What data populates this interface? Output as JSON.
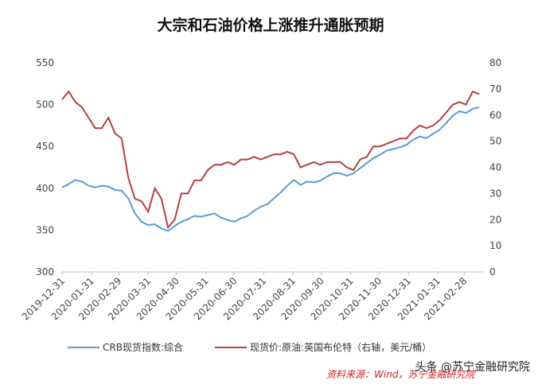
{
  "chart_data": {
    "type": "line",
    "title": "大宗和石油价格上涨推升通胀预期",
    "x": [
      "2019-12-31",
      "2020-01-07",
      "2020-01-14",
      "2020-01-21",
      "2020-01-28",
      "2020-02-04",
      "2020-02-11",
      "2020-02-18",
      "2020-02-25",
      "2020-03-03",
      "2020-03-10",
      "2020-03-17",
      "2020-03-24",
      "2020-03-31",
      "2020-04-07",
      "2020-04-14",
      "2020-04-21",
      "2020-04-28",
      "2020-05-05",
      "2020-05-12",
      "2020-05-19",
      "2020-05-26",
      "2020-06-02",
      "2020-06-09",
      "2020-06-16",
      "2020-06-23",
      "2020-06-30",
      "2020-07-07",
      "2020-07-14",
      "2020-07-21",
      "2020-07-28",
      "2020-08-04",
      "2020-08-11",
      "2020-08-18",
      "2020-08-25",
      "2020-09-01",
      "2020-09-08",
      "2020-09-15",
      "2020-09-22",
      "2020-09-29",
      "2020-10-06",
      "2020-10-13",
      "2020-10-20",
      "2020-10-27",
      "2020-11-03",
      "2020-11-10",
      "2020-11-17",
      "2020-11-24",
      "2020-12-01",
      "2020-12-08",
      "2020-12-15",
      "2020-12-22",
      "2020-12-29",
      "2021-01-05",
      "2021-01-12",
      "2021-01-19",
      "2021-01-26",
      "2021-02-02",
      "2021-02-09",
      "2021-02-16",
      "2021-02-23",
      "2021-03-02",
      "2021-03-09",
      "2021-03-16"
    ],
    "series": [
      {
        "name": "CRB现货指数:综合",
        "color": "#5b9bd5",
        "values": [
          401,
          405,
          410,
          408,
          403,
          401,
          403,
          402,
          398,
          397,
          388,
          370,
          360,
          356,
          357,
          352,
          349,
          355,
          360,
          363,
          367,
          366,
          368,
          370,
          365,
          362,
          360,
          364,
          367,
          373,
          378,
          381,
          388,
          395,
          403,
          410,
          404,
          408,
          407,
          409,
          414,
          418,
          418,
          415,
          418,
          424,
          430,
          436,
          440,
          445,
          447,
          449,
          452,
          458,
          462,
          460,
          465,
          470,
          478,
          487,
          492,
          490,
          495,
          497
        ]
      },
      {
        "name": "现货价:原油:英国布伦特（右轴，美元/桶）",
        "color": "#b5403f",
        "axis": "y2",
        "values": [
          66,
          69,
          65,
          63,
          59,
          55,
          55,
          59,
          53,
          51,
          36,
          28,
          27,
          23,
          32,
          28,
          17,
          20,
          30,
          30,
          35,
          35,
          39,
          41,
          41,
          42,
          41,
          43,
          43,
          44,
          43,
          44,
          45,
          45,
          46,
          45,
          40,
          41,
          42,
          41,
          42,
          42,
          42,
          40,
          39,
          43,
          44,
          48,
          48,
          49,
          50,
          51,
          51,
          54,
          56,
          55,
          56,
          58,
          61,
          64,
          65,
          64,
          69,
          68
        ]
      }
    ],
    "xlim": [
      "2019-12-31",
      "2021-03-20"
    ],
    "xticks": [
      "2019-12-31",
      "2020-01-31",
      "2020-02-29",
      "2020-03-31",
      "2020-04-30",
      "2020-05-31",
      "2020-06-30",
      "2020-07-31",
      "2020-08-31",
      "2020-09-30",
      "2020-10-31",
      "2020-11-30",
      "2020-12-31",
      "2021-01-31",
      "2021-02-28"
    ],
    "ylim": [
      300,
      550
    ],
    "yticks": [
      300,
      350,
      400,
      450,
      500,
      550
    ],
    "y2lim": [
      0,
      80
    ],
    "y2ticks": [
      0,
      10,
      20,
      30,
      40,
      50,
      60,
      70,
      80
    ],
    "source": "资料来源：Wind，苏宁金融研究院",
    "watermark": "头条 @苏宁金融研究院"
  }
}
